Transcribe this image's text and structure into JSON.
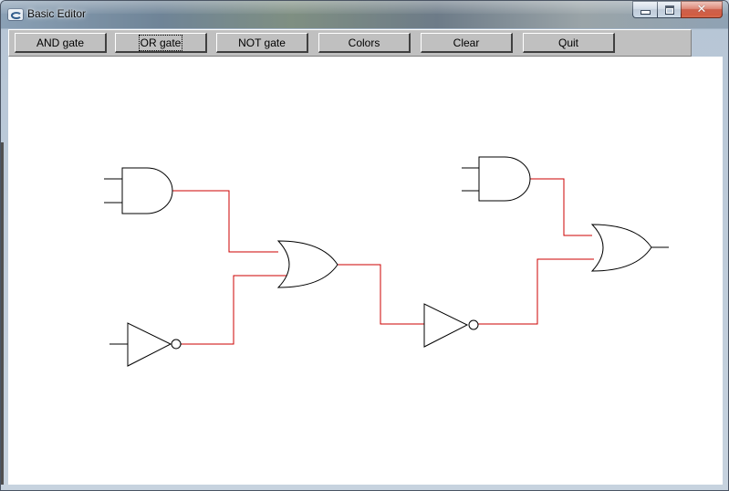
{
  "window": {
    "title": "Basic Editor",
    "icon": "app-icon",
    "controls": [
      "minimize-icon",
      "maximize-icon",
      "close-icon"
    ]
  },
  "toolbar": {
    "buttons": [
      {
        "label": "AND gate"
      },
      {
        "label": "OR gate"
      },
      {
        "label": "NOT gate"
      },
      {
        "label": "Colors"
      },
      {
        "label": "Clear"
      },
      {
        "label": "Quit"
      }
    ],
    "focused_button": "OR gate"
  },
  "diagram": {
    "wire_color": "#cc0000",
    "gate_color": "#000000",
    "gates": [
      "and-gate",
      "and-gate",
      "or-gate",
      "or-gate",
      "not-gate",
      "not-gate"
    ]
  }
}
